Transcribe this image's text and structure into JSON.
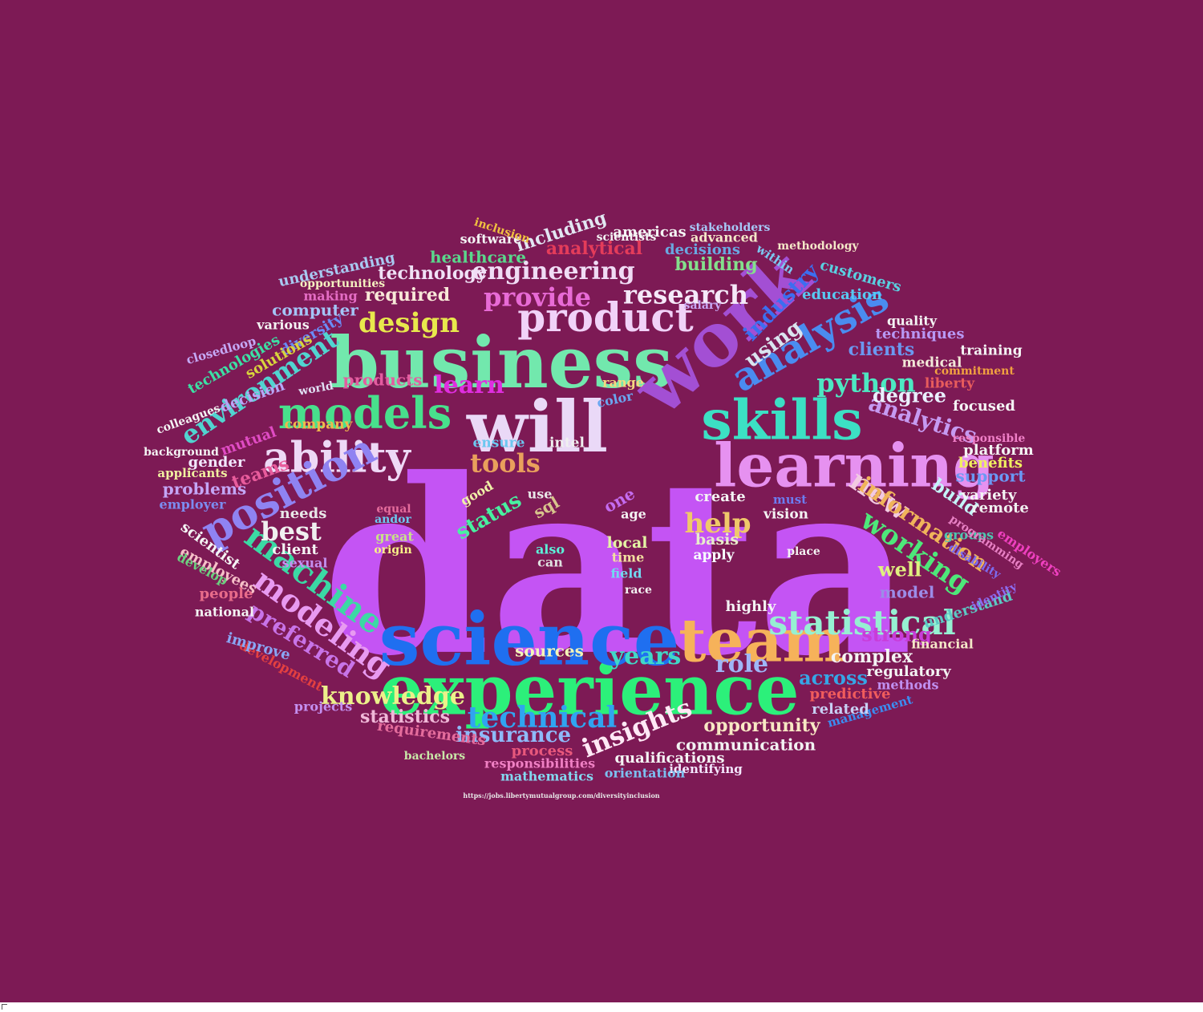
{
  "background": "#7d1a55",
  "words": [
    {
      "text": "data",
      "color": "#c454f4"
    },
    {
      "text": "business",
      "color": "#72e8ad"
    },
    {
      "text": "will",
      "color": "#ead9f7"
    },
    {
      "text": "work",
      "color": "#a34fd4"
    },
    {
      "text": "experience",
      "color": "#2cf07a"
    },
    {
      "text": "science",
      "color": "#1f6ff0"
    },
    {
      "text": "skills",
      "color": "#3ce0c4"
    },
    {
      "text": "learning",
      "color": "#e691f0"
    },
    {
      "text": "team",
      "color": "#f6b25a"
    },
    {
      "text": "models",
      "color": "#48e08c"
    },
    {
      "text": "ability",
      "color": "#eed9f6"
    },
    {
      "text": "product",
      "color": "#f1d2f8"
    },
    {
      "text": "position",
      "color": "#8f83f2"
    },
    {
      "text": "analysis",
      "color": "#4a8cf0"
    },
    {
      "text": "machine",
      "color": "#3bd9a4"
    },
    {
      "text": "statistical",
      "color": "#96f0d2"
    },
    {
      "text": "technical",
      "color": "#30a4f0"
    },
    {
      "text": "modeling",
      "color": "#e89af1"
    },
    {
      "text": "research",
      "color": "#f5e9f9"
    },
    {
      "text": "provide",
      "color": "#e86bd6"
    },
    {
      "text": "engineering",
      "color": "#f0dcf5"
    },
    {
      "text": "design",
      "color": "#e8e84c"
    },
    {
      "text": "tools",
      "color": "#e9a05c"
    },
    {
      "text": "help",
      "color": "#f0c86a"
    },
    {
      "text": "new",
      "color": "#f2cae2"
    },
    {
      "text": "working",
      "color": "#4ee87a"
    },
    {
      "text": "information",
      "color": "#f0b45a"
    },
    {
      "text": "python",
      "color": "#4de8c2"
    },
    {
      "text": "environment",
      "color": "#51d4d0"
    },
    {
      "text": "insights",
      "color": "#ffe8f5"
    },
    {
      "text": "knowledge",
      "color": "#ecf08a"
    },
    {
      "text": "preferred",
      "color": "#c874e8"
    },
    {
      "text": "years",
      "color": "#40d8c8"
    },
    {
      "text": "role",
      "color": "#9fb6f7"
    },
    {
      "text": "best",
      "color": "#f0f0f0"
    },
    {
      "text": "analytics",
      "color": "#c69af1"
    },
    {
      "text": "degree",
      "color": "#eaf0ff"
    },
    {
      "text": "industry",
      "color": "#3c6ef0"
    },
    {
      "text": "using",
      "color": "#dae4ef"
    },
    {
      "text": "status",
      "color": "#48f0a0"
    },
    {
      "text": "learn",
      "color": "#e02ee0"
    },
    {
      "text": "insurance",
      "color": "#8ebaf8"
    },
    {
      "text": "complex",
      "color": "#f4f4f4"
    },
    {
      "text": "across",
      "color": "#36a6e6"
    },
    {
      "text": "strong",
      "color": "#c83cd8"
    },
    {
      "text": "opportunity",
      "color": "#f8e8c4"
    },
    {
      "text": "required",
      "color": "#f8e8d8"
    },
    {
      "text": "technology",
      "color": "#f0e2f6"
    },
    {
      "text": "clients",
      "color": "#6b98f0"
    },
    {
      "text": "teams",
      "color": "#e85c9c"
    },
    {
      "text": "building",
      "color": "#84e08c"
    },
    {
      "text": "analytical",
      "color": "#e43c5a"
    },
    {
      "text": "including",
      "color": "#e2e6f2"
    },
    {
      "text": "healthcare",
      "color": "#5ad88c"
    },
    {
      "text": "products",
      "color": "#e45ca0"
    },
    {
      "text": "computer",
      "color": "#a4c4f6"
    },
    {
      "text": "diversity",
      "color": "#6a8cf6"
    },
    {
      "text": "solutions",
      "color": "#d8d43c"
    },
    {
      "text": "technologies",
      "color": "#3ce0a4"
    },
    {
      "text": "decision",
      "color": "#b8a6f6"
    },
    {
      "text": "problems",
      "color": "#c4a6f6"
    },
    {
      "text": "employees",
      "color": "#f6c0c8"
    },
    {
      "text": "people",
      "color": "#e86c8a"
    },
    {
      "text": "gender",
      "color": "#f2e8ff"
    },
    {
      "text": "mutual",
      "color": "#e04cc4"
    },
    {
      "text": "company",
      "color": "#f0b84c"
    },
    {
      "text": "ensure",
      "color": "#6cc8f0"
    },
    {
      "text": "intel",
      "color": "#f0f0f0"
    },
    {
      "text": "range",
      "color": "#f4d880"
    },
    {
      "text": "color",
      "color": "#6aa6f0"
    },
    {
      "text": "one",
      "color": "#c46cf0"
    },
    {
      "text": "sql",
      "color": "#d8c48c"
    },
    {
      "text": "good",
      "color": "#f0f0a8"
    },
    {
      "text": "local",
      "color": "#e4f4a4"
    },
    {
      "text": "time",
      "color": "#f2e0a0"
    },
    {
      "text": "field",
      "color": "#72d8f0"
    },
    {
      "text": "create",
      "color": "#f4f4f4"
    },
    {
      "text": "basis",
      "color": "#e8eccc"
    },
    {
      "text": "apply",
      "color": "#f8ffff"
    },
    {
      "text": "vision",
      "color": "#f4f4f4"
    },
    {
      "text": "well",
      "color": "#e0f080"
    },
    {
      "text": "model",
      "color": "#9c8ce8"
    },
    {
      "text": "build",
      "color": "#c4f4f8"
    },
    {
      "text": "support",
      "color": "#6a98f4"
    },
    {
      "text": "variety",
      "color": "#f4f4f4"
    },
    {
      "text": "remote",
      "color": "#f0f0f0"
    },
    {
      "text": "platform",
      "color": "#f4f4f4"
    },
    {
      "text": "benefits",
      "color": "#f0f060"
    },
    {
      "text": "employers",
      "color": "#f040c0"
    },
    {
      "text": "focused",
      "color": "#f4f4f4"
    },
    {
      "text": "liberty",
      "color": "#e85c5c"
    },
    {
      "text": "medical",
      "color": "#f2e8d8"
    },
    {
      "text": "training",
      "color": "#f4f4f4"
    },
    {
      "text": "techniques",
      "color": "#b898f4"
    },
    {
      "text": "education",
      "color": "#58c8f0"
    },
    {
      "text": "customers",
      "color": "#5ad0e0"
    },
    {
      "text": "decisions",
      "color": "#6aa8e0"
    },
    {
      "text": "stakeholders",
      "color": "#a6c8f6"
    },
    {
      "text": "americas",
      "color": "#f4f4f4"
    },
    {
      "text": "advanced",
      "color": "#f4e8c8"
    },
    {
      "text": "salary",
      "color": "#c8a8f4"
    },
    {
      "text": "understand",
      "color": "#5cc8c4"
    },
    {
      "text": "regulatory",
      "color": "#f2f2f2"
    },
    {
      "text": "statistics",
      "color": "#f0b8d8"
    },
    {
      "text": "requirements",
      "color": "#e46c9c"
    },
    {
      "text": "process",
      "color": "#e8587c"
    },
    {
      "text": "responsibilities",
      "color": "#f080c4"
    },
    {
      "text": "mathematics",
      "color": "#84d8f0"
    },
    {
      "text": "communication",
      "color": "#f2f2f2"
    },
    {
      "text": "qualifications",
      "color": "#f4f4f4"
    },
    {
      "text": "identifying",
      "color": "#f4e8ff"
    },
    {
      "text": "orientation",
      "color": "#7cc0f0"
    },
    {
      "text": "management",
      "color": "#3c8cf0"
    },
    {
      "text": "related",
      "color": "#c8d0f4"
    },
    {
      "text": "predictive",
      "color": "#f05c5c"
    },
    {
      "text": "methods",
      "color": "#c090f0"
    },
    {
      "text": "projects",
      "color": "#c490f0"
    },
    {
      "text": "development",
      "color": "#e44040"
    },
    {
      "text": "improve",
      "color": "#8aa6f4"
    },
    {
      "text": "national",
      "color": "#f4f4f4"
    },
    {
      "text": "client",
      "color": "#f4f4f4"
    },
    {
      "text": "needs",
      "color": "#e8e8e8"
    },
    {
      "text": "sexual",
      "color": "#c490f0"
    },
    {
      "text": "scientist",
      "color": "#f4f4f4"
    },
    {
      "text": "develop",
      "color": "#6cd080"
    },
    {
      "text": "employer",
      "color": "#7c8cf0"
    },
    {
      "text": "applicants",
      "color": "#f0f0a0"
    },
    {
      "text": "background",
      "color": "#f4f4f4"
    },
    {
      "text": "closedloop",
      "color": "#c4a8f4"
    },
    {
      "text": "colleagues",
      "color": "#f4f4f4"
    },
    {
      "text": "understanding",
      "color": "#a8c8f0"
    },
    {
      "text": "software",
      "color": "#f4f4f4"
    },
    {
      "text": "opportunities",
      "color": "#f4f0c0"
    },
    {
      "text": "making",
      "color": "#e46cc4"
    },
    {
      "text": "various",
      "color": "#f4f4f4"
    },
    {
      "text": "inclusion",
      "color": "#f0c040"
    },
    {
      "text": "scientists",
      "color": "#f4f4f4"
    },
    {
      "text": "world",
      "color": "#e0e0f4"
    },
    {
      "text": "andor",
      "color": "#6cc8f0"
    },
    {
      "text": "origin",
      "color": "#f8f088"
    },
    {
      "text": "great",
      "color": "#c8e088"
    },
    {
      "text": "also",
      "color": "#5cf0d8"
    },
    {
      "text": "can",
      "color": "#e0e0e0"
    },
    {
      "text": "use",
      "color": "#e8e8e8"
    },
    {
      "text": "equal",
      "color": "#e46c9c"
    },
    {
      "text": "within",
      "color": "#7cc8f0"
    },
    {
      "text": "methodology",
      "color": "#f4e8c8"
    },
    {
      "text": "quality",
      "color": "#f4f4f4"
    },
    {
      "text": "highly",
      "color": "#f4f4f4"
    },
    {
      "text": "race",
      "color": "#f4f4f4"
    },
    {
      "text": "age",
      "color": "#f4f4f4"
    },
    {
      "text": "must",
      "color": "#6c7cf0"
    },
    {
      "text": "place",
      "color": "#f4f4f4"
    },
    {
      "text": "financial",
      "color": "#f4e8c8"
    },
    {
      "text": "groups",
      "color": "#4cc8b0"
    },
    {
      "text": "programming",
      "color": "#e880c4"
    },
    {
      "text": "identity",
      "color": "#8c6cf0"
    },
    {
      "text": "disability",
      "color": "#7c6cf0"
    },
    {
      "text": "sources",
      "color": "#f4f4b8"
    },
    {
      "text": "bachelors",
      "color": "#c8e8a8"
    },
    {
      "text": "commitment",
      "color": "#f0a040"
    },
    {
      "text": "responsible",
      "color": "#f080c8"
    },
    {
      "text": "https://jobs.libertymutualgroup.com/diversityinclusion",
      "color": "#e8e8e8"
    }
  ]
}
